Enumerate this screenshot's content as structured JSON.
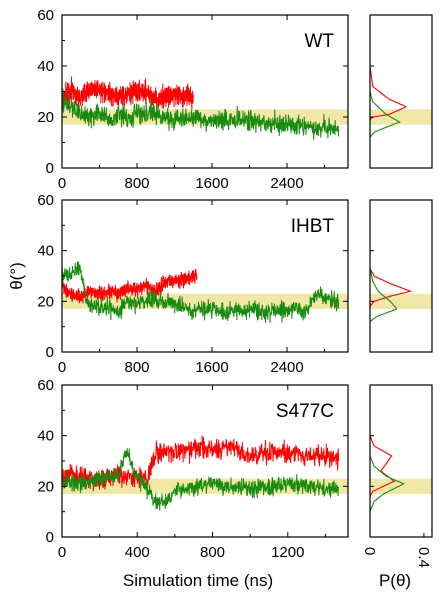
{
  "y_axis_label": "θ(°)",
  "x_axis_label": "Simulation time (ns)",
  "dist_axis_label": "P(θ)",
  "band": {
    "y_low": 17,
    "y_high": 23,
    "color": "#f1e7a7"
  },
  "colors": {
    "red": "#ff0000",
    "green": "#188a0f"
  },
  "chart_data": [
    {
      "type": "line",
      "title": "WT",
      "xlabel": "Simulation time (ns)",
      "ylabel": "θ(°)",
      "xlim": [
        0,
        3050
      ],
      "ylim": [
        0,
        60
      ],
      "xticks": [
        "0",
        "800",
        "1600",
        "2400"
      ],
      "yticks": [
        "0",
        "20",
        "40",
        "60"
      ],
      "series": [
        {
          "color": "red",
          "x": [
            0,
            100,
            200,
            300,
            400,
            500,
            600,
            700,
            800,
            900,
            1000,
            1100,
            1200,
            1300,
            1400
          ],
          "y": [
            27,
            30,
            28,
            31,
            30,
            29,
            28,
            29,
            30,
            30,
            27,
            28,
            29,
            28,
            28
          ],
          "noise": 3
        },
        {
          "color": "green",
          "x": [
            0,
            100,
            200,
            300,
            400,
            500,
            600,
            700,
            800,
            1000,
            1200,
            1400,
            1600,
            1800,
            2000,
            2200,
            2400,
            2600,
            2800,
            2950
          ],
          "y": [
            26,
            24,
            21,
            20,
            22,
            18,
            21,
            19,
            22,
            21,
            19,
            20,
            18,
            19,
            19,
            17,
            17,
            16,
            16,
            15
          ],
          "noise": 3
        }
      ],
      "distribution": [
        {
          "color": "red",
          "x": [
            0,
            0.02,
            0.14,
            0.27,
            0.14,
            0.02,
            0
          ],
          "y": [
            19,
            20,
            21,
            24,
            27,
            32,
            40
          ]
        },
        {
          "color": "green",
          "x": [
            0,
            0.03,
            0.12,
            0.22,
            0.12,
            0.02,
            0
          ],
          "y": [
            12,
            14,
            16,
            18,
            21,
            26,
            30
          ]
        }
      ]
    },
    {
      "type": "line",
      "title": "IHBT",
      "xlabel": "Simulation time (ns)",
      "ylabel": "θ(°)",
      "xlim": [
        0,
        3050
      ],
      "ylim": [
        0,
        60
      ],
      "xticks": [
        "0",
        "800",
        "1600",
        "2400"
      ],
      "yticks": [
        "0",
        "20",
        "40",
        "60"
      ],
      "series": [
        {
          "color": "red",
          "x": [
            0,
            100,
            200,
            300,
            400,
            500,
            600,
            700,
            800,
            900,
            1000,
            1100,
            1200,
            1300,
            1440
          ],
          "y": [
            26,
            23,
            22,
            24,
            23,
            24,
            23,
            25,
            25,
            26,
            24,
            28,
            28,
            29,
            30
          ],
          "noise": 2
        },
        {
          "color": "green",
          "x": [
            0,
            100,
            200,
            250,
            300,
            400,
            500,
            600,
            700,
            800,
            1000,
            1200,
            1400,
            1600,
            1800,
            2000,
            2200,
            2400,
            2600,
            2700,
            2800,
            2950
          ],
          "y": [
            30,
            31,
            33,
            22,
            19,
            17,
            18,
            16,
            20,
            19,
            21,
            19,
            17,
            17,
            16,
            17,
            16,
            17,
            16,
            23,
            21,
            20
          ],
          "noise": 2.5
        }
      ],
      "distribution": [
        {
          "color": "red",
          "x": [
            0,
            0.03,
            0.15,
            0.3,
            0.15,
            0.03,
            0
          ],
          "y": [
            18,
            20,
            22,
            24,
            27,
            30,
            33
          ]
        },
        {
          "color": "green",
          "x": [
            0,
            0.05,
            0.2,
            0.15,
            0.06,
            0.02,
            0
          ],
          "y": [
            12,
            14,
            17,
            20,
            24,
            28,
            33
          ]
        }
      ]
    },
    {
      "type": "line",
      "title": "S477C",
      "xlabel": "Simulation time (ns)",
      "ylabel": "θ(°)",
      "xlim": [
        0,
        1520
      ],
      "ylim": [
        0,
        60
      ],
      "xticks": [
        "0",
        "400",
        "800",
        "1200"
      ],
      "yticks": [
        "0",
        "20",
        "40",
        "60"
      ],
      "series": [
        {
          "color": "red",
          "x": [
            0,
            100,
            200,
            300,
            400,
            450,
            500,
            600,
            700,
            800,
            900,
            1000,
            1100,
            1200,
            1300,
            1400,
            1470
          ],
          "y": [
            23,
            24,
            22,
            25,
            24,
            23,
            33,
            33,
            35,
            34,
            36,
            31,
            34,
            33,
            32,
            32,
            31
          ],
          "noise": 3
        },
        {
          "color": "green",
          "x": [
            0,
            100,
            200,
            300,
            340,
            380,
            450,
            500,
            550,
            600,
            700,
            800,
            900,
            1000,
            1100,
            1200,
            1300,
            1400,
            1470
          ],
          "y": [
            22,
            21,
            23,
            24,
            34,
            26,
            20,
            14,
            13,
            18,
            20,
            21,
            20,
            19,
            20,
            21,
            20,
            19,
            19
          ],
          "noise": 2.5
        }
      ],
      "distribution": [
        {
          "color": "red",
          "x": [
            0,
            0.02,
            0.18,
            0.08,
            0.16,
            0.03,
            0
          ],
          "y": [
            16,
            18,
            22,
            26,
            32,
            36,
            40
          ]
        },
        {
          "color": "green",
          "x": [
            0,
            0.03,
            0.1,
            0.25,
            0.12,
            0.03,
            0
          ],
          "y": [
            10,
            14,
            17,
            21,
            24,
            28,
            32
          ]
        }
      ]
    }
  ],
  "dist_axis": {
    "xlim": [
      0,
      0.46
    ],
    "xticks": [
      "0",
      "0.4"
    ]
  }
}
